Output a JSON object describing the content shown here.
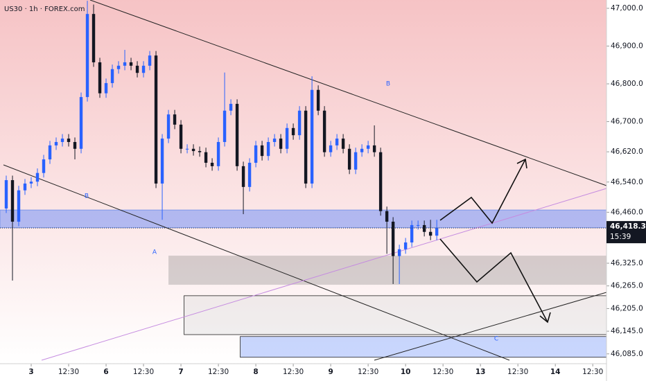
{
  "chart_data": {
    "type": "candlestick",
    "title": "US30 · 1h · FOREX.com",
    "up_color": "#2962ff",
    "down_color": "#131722",
    "ylim": [
      46059,
      47022
    ],
    "yticks": [
      {
        "value": 47000,
        "label": "47,000.0"
      },
      {
        "value": 46900,
        "label": "46,900.0"
      },
      {
        "value": 46800,
        "label": "46,800.0"
      },
      {
        "value": 46700,
        "label": "46,700.0"
      },
      {
        "value": 46620,
        "label": "46,620.0"
      },
      {
        "value": 46540,
        "label": "46,540.0"
      },
      {
        "value": 46460,
        "label": "46,460.0"
      },
      {
        "value": 46325,
        "label": "46,325.0"
      },
      {
        "value": 46265,
        "label": "46,265.0"
      },
      {
        "value": 46205,
        "label": "46,205.0"
      },
      {
        "value": 46145,
        "label": "46,145.0"
      },
      {
        "value": 46085,
        "label": "46,085.0"
      }
    ],
    "xlim": [
      0,
      194.4
    ],
    "xticks": [
      {
        "value": 10,
        "label": "3"
      },
      {
        "value": 22,
        "label": "12:30"
      },
      {
        "value": 34,
        "label": "6"
      },
      {
        "value": 46,
        "label": "12:30"
      },
      {
        "value": 58,
        "label": "7"
      },
      {
        "value": 70,
        "label": "12:30"
      },
      {
        "value": 82,
        "label": "8"
      },
      {
        "value": 94,
        "label": "12:30"
      },
      {
        "value": 106,
        "label": "9"
      },
      {
        "value": 118,
        "label": "12:30"
      },
      {
        "value": 130,
        "label": "10"
      },
      {
        "value": 142,
        "label": "12:30"
      },
      {
        "value": 154,
        "label": "13"
      },
      {
        "value": 166,
        "label": "12:30"
      },
      {
        "value": 178,
        "label": "14"
      },
      {
        "value": 190,
        "label": "12:30"
      }
    ],
    "x": [
      2,
      4,
      6,
      8,
      10,
      12,
      14,
      16,
      18,
      20,
      22,
      24,
      26,
      28,
      30,
      32,
      34,
      36,
      38,
      40,
      42,
      44,
      46,
      48,
      50,
      52,
      54,
      56,
      58,
      60,
      62,
      64,
      66,
      68,
      70,
      72,
      74,
      76,
      78,
      80,
      82,
      84,
      86,
      88,
      90,
      92,
      94,
      96,
      98,
      100,
      102,
      104,
      106,
      108,
      110,
      112,
      114,
      116,
      118,
      120,
      122,
      124,
      126,
      128,
      130,
      132,
      134,
      136,
      138,
      140
    ],
    "open": [
      46470,
      46545,
      46435,
      46518,
      46536,
      46541,
      46564,
      46600,
      46637,
      46646,
      46655,
      46646,
      46628,
      46765,
      46985,
      46857,
      46775,
      46802,
      46839,
      46848,
      46857,
      46848,
      46829,
      46848,
      46875,
      46536,
      46655,
      46719,
      46692,
      46628,
      46628,
      46622,
      46619,
      46591,
      46582,
      46646,
      46729,
      46747,
      46582,
      46527,
      46591,
      46637,
      46609,
      46646,
      46655,
      46628,
      46683,
      46664,
      46729,
      46536,
      46784,
      46729,
      46619,
      46637,
      46655,
      46628,
      46573,
      46619,
      46628,
      46637,
      46619,
      46463,
      46435,
      46344,
      46362,
      46380,
      46426,
      46426,
      46408,
      46398
    ],
    "high": [
      46557,
      46557,
      46530,
      46548,
      46553,
      46576,
      46612,
      46649,
      46658,
      46667,
      46667,
      46658,
      46777,
      47020,
      47010,
      46869,
      46814,
      46851,
      46860,
      46890,
      46869,
      46860,
      46860,
      46887,
      46887,
      46667,
      46731,
      46731,
      46704,
      46640,
      46640,
      46634,
      46631,
      46603,
      46658,
      46830,
      46759,
      46759,
      46594,
      46603,
      46649,
      46649,
      46658,
      46667,
      46667,
      46695,
      46695,
      46741,
      46741,
      46820,
      46796,
      46741,
      46649,
      46667,
      46667,
      46640,
      46631,
      46640,
      46649,
      46690,
      46631,
      46475,
      46447,
      46374,
      46392,
      46438,
      46438,
      46438,
      46440,
      46440
    ],
    "low": [
      46458,
      46279,
      46423,
      46506,
      46524,
      46529,
      46552,
      46588,
      46625,
      46634,
      46634,
      46600,
      46616,
      46753,
      46845,
      46763,
      46763,
      46790,
      46827,
      46836,
      46836,
      46817,
      46817,
      46836,
      46524,
      46440,
      46643,
      46680,
      46616,
      46616,
      46610,
      46607,
      46579,
      46570,
      46570,
      46634,
      46717,
      46570,
      46455,
      46515,
      46579,
      46597,
      46597,
      46634,
      46616,
      46616,
      46652,
      46652,
      46524,
      46524,
      46717,
      46607,
      46607,
      46625,
      46616,
      46561,
      46561,
      46607,
      46616,
      46607,
      46451,
      46350,
      46270,
      46270,
      46350,
      46368,
      46414,
      46396,
      46386,
      46386
    ],
    "close": [
      46545,
      46435,
      46518,
      46536,
      46541,
      46564,
      46600,
      46637,
      46646,
      46655,
      46646,
      46628,
      46765,
      46985,
      46857,
      46775,
      46802,
      46839,
      46848,
      46857,
      46848,
      46829,
      46848,
      46875,
      46536,
      46655,
      46719,
      46692,
      46628,
      46628,
      46622,
      46619,
      46591,
      46582,
      46646,
      46729,
      46747,
      46582,
      46527,
      46591,
      46637,
      46609,
      46646,
      46655,
      46628,
      46683,
      46664,
      46729,
      46536,
      46784,
      46729,
      46619,
      46637,
      46655,
      46628,
      46573,
      46619,
      46628,
      46637,
      46619,
      46463,
      46435,
      46344,
      46362,
      46380,
      46426,
      46426,
      46408,
      46398,
      46418.3
    ],
    "zones": [
      {
        "from": 46419,
        "to": 46466,
        "start": 0,
        "color": "rgba(41,98,255,0.35)"
      },
      {
        "from": 46268,
        "to": 46345,
        "start": 54,
        "color": "rgba(110,110,110,0.28)"
      },
      {
        "from": 46136,
        "to": 46239,
        "start": 59,
        "color": "rgba(215,215,215,0.35)"
      },
      {
        "from": 46076,
        "to": 46131,
        "start": 77,
        "color": "rgba(41,98,255,0.25)"
      }
    ],
    "annotations": [
      "B",
      "B",
      "A",
      "C"
    ],
    "last_price": {
      "value": 46418.3,
      "label": "46,418.3"
    },
    "countdown": "15:39"
  }
}
